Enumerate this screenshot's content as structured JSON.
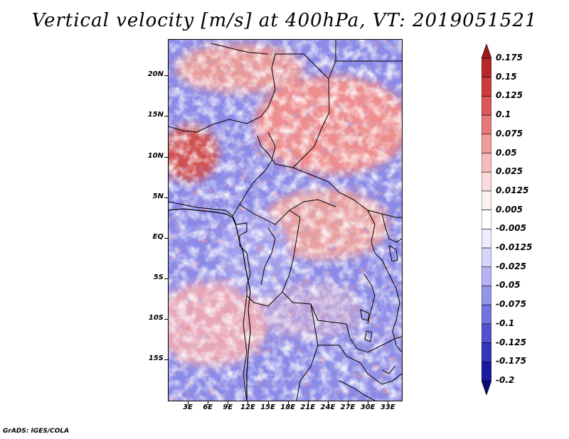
{
  "title": "Vertical velocity [m/s] at 400hPa, VT: 2019051521",
  "credit": "GrADS: IGES/COLA",
  "map": {
    "lat_labels": [
      "20N",
      "15N",
      "10N",
      "5N",
      "EQ",
      "5S",
      "10S",
      "15S"
    ],
    "lat_values": [
      20,
      15,
      10,
      5,
      0,
      -5,
      -10,
      -15
    ],
    "lon_labels": [
      "3E",
      "6E",
      "9E",
      "12E",
      "15E",
      "18E",
      "21E",
      "24E",
      "27E",
      "30E",
      "33E"
    ],
    "lon_values": [
      3,
      6,
      9,
      12,
      15,
      18,
      21,
      24,
      27,
      30,
      33
    ],
    "lon_range": [
      0,
      35
    ],
    "lat_range": [
      -20,
      24.5
    ]
  },
  "colorbar": {
    "levels": [
      "0.175",
      "0.15",
      "0.125",
      "0.1",
      "0.075",
      "0.05",
      "0.025",
      "0.0125",
      "0.005",
      "-0.005",
      "-0.0125",
      "-0.025",
      "-0.05",
      "-0.075",
      "-0.1",
      "-0.125",
      "-0.175",
      "-0.2"
    ],
    "colors": [
      "#a01818",
      "#b82828",
      "#cc3c3c",
      "#dc5858",
      "#e87878",
      "#f09a9a",
      "#f6bcbc",
      "#fadada",
      "#fdf0f0",
      "#ffffff",
      "#ececfd",
      "#d4d4fa",
      "#b4b4f4",
      "#9494ec",
      "#7272e0",
      "#5252d0",
      "#3434bc",
      "#1a1aa0",
      "#0a0a7a"
    ]
  },
  "colors": {
    "positive": "#d44040",
    "negative": "#5050d8",
    "border": "#000000"
  }
}
